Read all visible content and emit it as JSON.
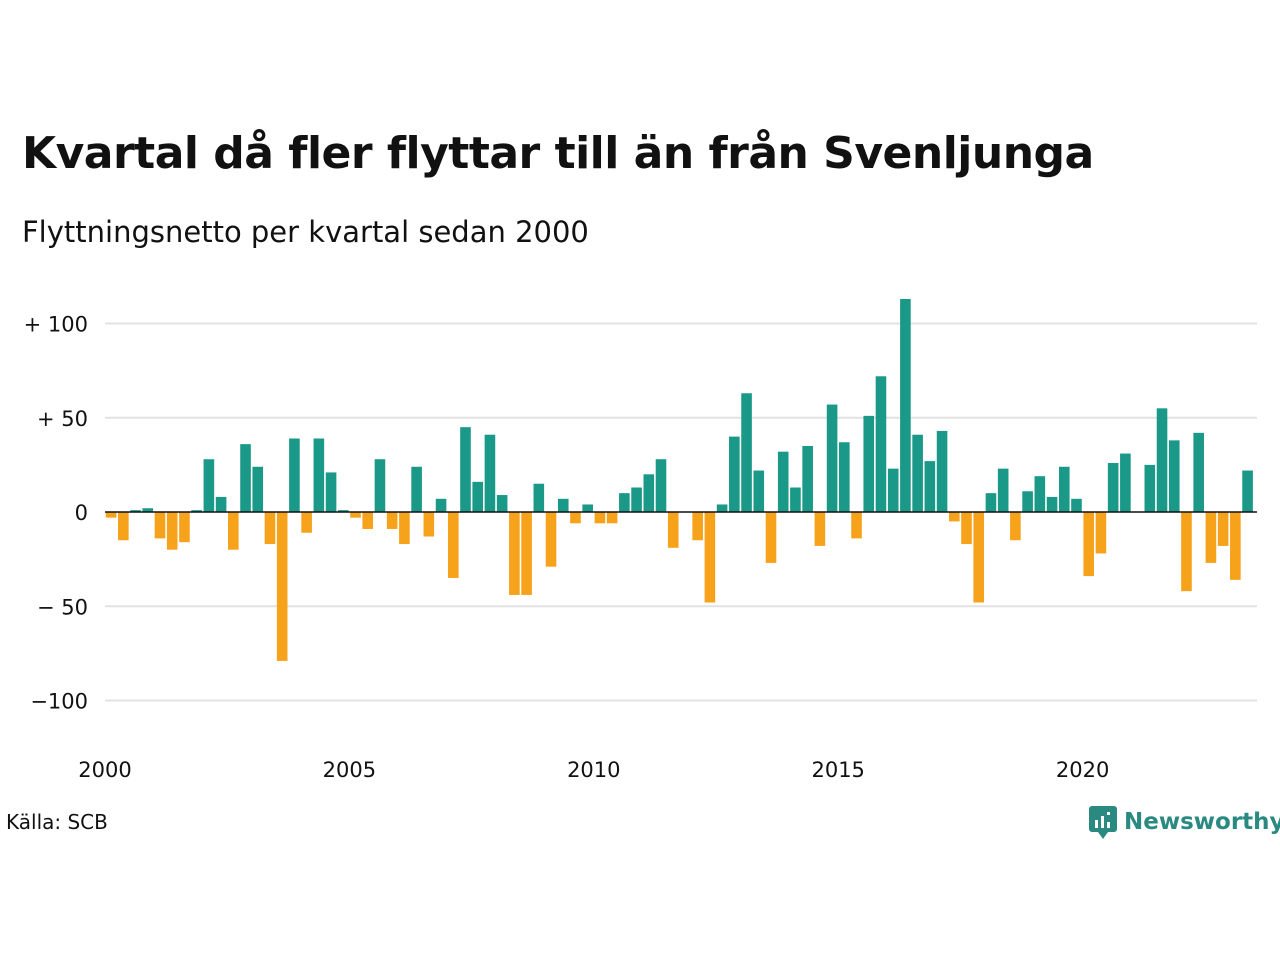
{
  "title": "Kvartal då fler flyttar till än från Svenljunga",
  "subtitle": "Flyttningsnetto per kvartal sedan 2000",
  "source": "Källa: SCB",
  "logo_text": "Newsworthy",
  "colors": {
    "positive": "#1a9988",
    "negative": "#f7a21b",
    "grid": "#e2e2e2",
    "axis": "#111111"
  },
  "chart_data": {
    "type": "bar",
    "x_start": "2000 Q1",
    "x_ticks": [
      "2000",
      "2005",
      "2010",
      "2015",
      "2020"
    ],
    "y_ticks": [
      {
        "value": 100,
        "label": "+ 100"
      },
      {
        "value": 50,
        "label": "+  50"
      },
      {
        "value": 0,
        "label": "0"
      },
      {
        "value": -50,
        "label": "− 50"
      },
      {
        "value": -100,
        "label": "−100"
      }
    ],
    "ylim": [
      -115,
      115
    ],
    "grid": true,
    "values": [
      -3,
      -15,
      1,
      2,
      -14,
      -20,
      -16,
      1,
      28,
      8,
      -20,
      36,
      24,
      -17,
      -79,
      39,
      -11,
      39,
      21,
      1,
      -3,
      -9,
      28,
      -9,
      -17,
      24,
      -13,
      7,
      -35,
      45,
      16,
      41,
      9,
      -44,
      -44,
      15,
      -29,
      7,
      -6,
      4,
      -6,
      -6,
      10,
      13,
      20,
      28,
      -19,
      0,
      -15,
      -48,
      4,
      40,
      63,
      22,
      -27,
      32,
      13,
      35,
      -18,
      57,
      37,
      -14,
      51,
      72,
      23,
      113,
      41,
      27,
      43,
      -5,
      -17,
      -48,
      10,
      23,
      -15,
      11,
      19,
      8,
      24,
      7,
      -34,
      -22,
      26,
      31,
      0,
      25,
      55,
      38,
      -42,
      42,
      -27,
      -18,
      -36,
      22
    ]
  }
}
